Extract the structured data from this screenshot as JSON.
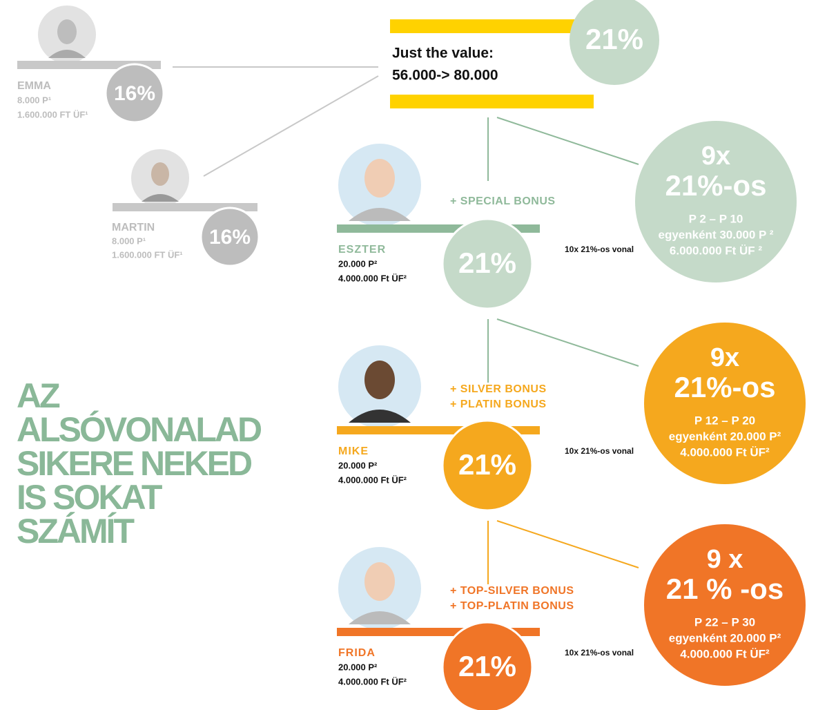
{
  "headline": [
    "AZ",
    "ALSÓVONALAD",
    "SIKERE NEKED",
    "IS SOKAT",
    "SZÁMÍT"
  ],
  "top_box": {
    "line1": "Just the value:",
    "line2": "56.000-> 80.000",
    "badge": "21%"
  },
  "upline": [
    {
      "name": "EMMA",
      "points": "8.000 P¹",
      "volume": "1.600.000 FT ÜF¹",
      "badge": "16%"
    },
    {
      "name": "MARTIN",
      "points": "8.000 P¹",
      "volume": "1.600.000 FT ÜF¹",
      "badge": "16%"
    }
  ],
  "levels": [
    {
      "name": "ESZTER",
      "points": "20.000 P²",
      "volume": "4.000.000 Ft ÜF²",
      "badge": "21%",
      "color": "#8fb99a",
      "badge_color": "#c5dac9",
      "bonuses": [
        "+ SPECIAL BONUS"
      ],
      "line_note": "10x 21%-os vonal",
      "summary": [
        "9x",
        "21%-os",
        "P 2 – P 10",
        "egyenként 30.000 P ²",
        "6.000.000 Ft ÜF ²"
      ]
    },
    {
      "name": "MIKE",
      "points": "20.000 P²",
      "volume": "4.000.000 Ft ÜF²",
      "badge": "21%",
      "color": "#f5a81e",
      "badge_color": "#f5a81e",
      "bonuses": [
        "+ SILVER BONUS",
        "+ PLATIN BONUS"
      ],
      "line_note": "10x 21%-os vonal",
      "summary": [
        "9x",
        "21%-os",
        "P 12 – P 20",
        "egyenként 20.000 P²",
        "4.000.000 Ft ÜF²"
      ]
    },
    {
      "name": "FRIDA",
      "points": "20.000 P²",
      "volume": "4.000.000 Ft ÜF²",
      "badge": "21%",
      "color": "#f07527",
      "badge_color": "#f07527",
      "bonuses": [
        "+ TOP-SILVER BONUS",
        "+ TOP-PLATIN BONUS"
      ],
      "line_note": "10x 21%-os vonal",
      "summary": [
        "9 x",
        "21 % -os",
        "P 22 – P 30",
        "egyenként 20.000 P²",
        "4.000.000 Ft ÜF²"
      ]
    }
  ]
}
